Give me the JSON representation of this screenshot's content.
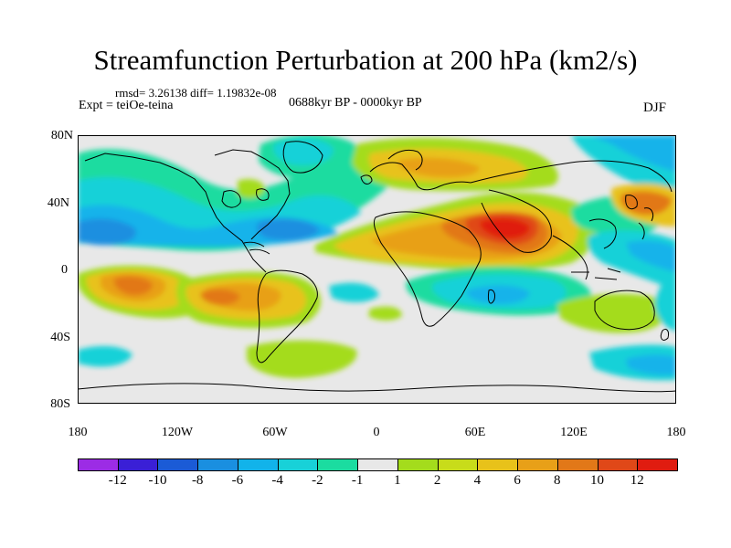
{
  "header": {
    "title": "Streamfunction Perturbation at 200 hPa (km2/s)",
    "rmsd_line": "rmsd= 3.26138 diff= 1.19832e-08",
    "expt_line": "Expt = teiOe-teina",
    "period_line": "0688kyr BP - 0000kyr BP",
    "season": "DJF"
  },
  "map": {
    "lat_labels": [
      "80N",
      "40N",
      "0",
      "40S",
      "80S"
    ],
    "lon_labels": [
      "180",
      "120W",
      "60W",
      "0",
      "60E",
      "120E",
      "180"
    ]
  },
  "colorbar": {
    "colors": [
      "#9c2ce5",
      "#3a1fd6",
      "#1b5bd6",
      "#1a8fe0",
      "#12b3ea",
      "#18d1d8",
      "#1bdca0",
      "#e8e8e8",
      "#a4dc1c",
      "#c8dc1a",
      "#e8c21a",
      "#e8a018",
      "#e27818",
      "#e04818",
      "#e01c10"
    ],
    "labels": [
      "-12",
      "-10",
      "-8",
      "-6",
      "-4",
      "-2",
      "-1",
      "1",
      "2",
      "4",
      "6",
      "8",
      "10",
      "12"
    ]
  }
}
